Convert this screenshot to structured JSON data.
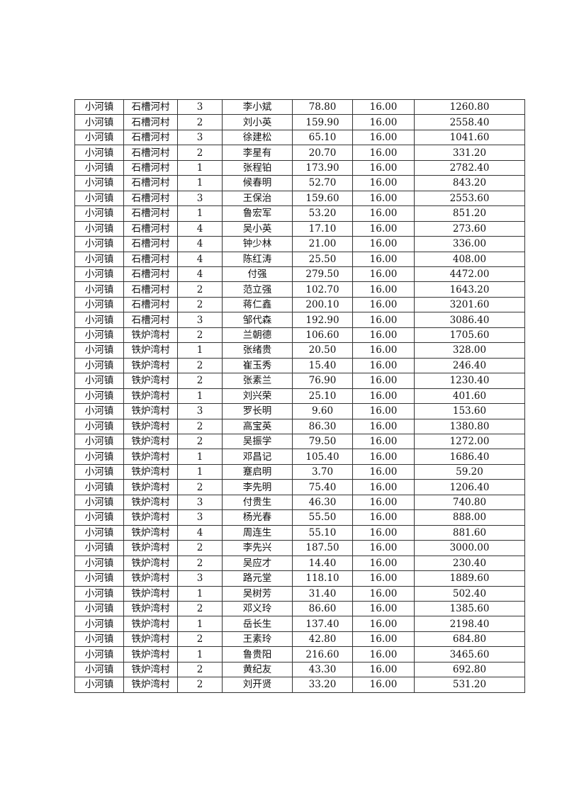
{
  "table": {
    "rows": [
      [
        "小河镇",
        "石槽河村",
        "3",
        "李小斌",
        "78.80",
        "16.00",
        "1260.80"
      ],
      [
        "小河镇",
        "石槽河村",
        "2",
        "刘小英",
        "159.90",
        "16.00",
        "2558.40"
      ],
      [
        "小河镇",
        "石槽河村",
        "3",
        "徐建松",
        "65.10",
        "16.00",
        "1041.60"
      ],
      [
        "小河镇",
        "石槽河村",
        "2",
        "李星有",
        "20.70",
        "16.00",
        "331.20"
      ],
      [
        "小河镇",
        "石槽河村",
        "1",
        "张程铂",
        "173.90",
        "16.00",
        "2782.40"
      ],
      [
        "小河镇",
        "石槽河村",
        "1",
        "候春明",
        "52.70",
        "16.00",
        "843.20"
      ],
      [
        "小河镇",
        "石槽河村",
        "3",
        "王保治",
        "159.60",
        "16.00",
        "2553.60"
      ],
      [
        "小河镇",
        "石槽河村",
        "1",
        "鲁宏军",
        "53.20",
        "16.00",
        "851.20"
      ],
      [
        "小河镇",
        "石槽河村",
        "4",
        "吴小英",
        "17.10",
        "16.00",
        "273.60"
      ],
      [
        "小河镇",
        "石槽河村",
        "4",
        "钟少林",
        "21.00",
        "16.00",
        "336.00"
      ],
      [
        "小河镇",
        "石槽河村",
        "4",
        "陈红涛",
        "25.50",
        "16.00",
        "408.00"
      ],
      [
        "小河镇",
        "石槽河村",
        "4",
        "付强",
        "279.50",
        "16.00",
        "4472.00"
      ],
      [
        "小河镇",
        "石槽河村",
        "2",
        "范立强",
        "102.70",
        "16.00",
        "1643.20"
      ],
      [
        "小河镇",
        "石槽河村",
        "2",
        "蒋仁鑫",
        "200.10",
        "16.00",
        "3201.60"
      ],
      [
        "小河镇",
        "石槽河村",
        "3",
        "邹代森",
        "192.90",
        "16.00",
        "3086.40"
      ],
      [
        "小河镇",
        "铁炉湾村",
        "2",
        "兰朝德",
        "106.60",
        "16.00",
        "1705.60"
      ],
      [
        "小河镇",
        "铁炉湾村",
        "1",
        "张绪贵",
        "20.50",
        "16.00",
        "328.00"
      ],
      [
        "小河镇",
        "铁炉湾村",
        "2",
        "崔玉秀",
        "15.40",
        "16.00",
        "246.40"
      ],
      [
        "小河镇",
        "铁炉湾村",
        "2",
        "张素兰",
        "76.90",
        "16.00",
        "1230.40"
      ],
      [
        "小河镇",
        "铁炉湾村",
        "1",
        "刘兴荣",
        "25.10",
        "16.00",
        "401.60"
      ],
      [
        "小河镇",
        "铁炉湾村",
        "3",
        "罗长明",
        "9.60",
        "16.00",
        "153.60"
      ],
      [
        "小河镇",
        "铁炉湾村",
        "2",
        "高宝英",
        "86.30",
        "16.00",
        "1380.80"
      ],
      [
        "小河镇",
        "铁炉湾村",
        "2",
        "吴振学",
        "79.50",
        "16.00",
        "1272.00"
      ],
      [
        "小河镇",
        "铁炉湾村",
        "1",
        "邓昌记",
        "105.40",
        "16.00",
        "1686.40"
      ],
      [
        "小河镇",
        "铁炉湾村",
        "1",
        "蹇启明",
        "3.70",
        "16.00",
        "59.20"
      ],
      [
        "小河镇",
        "铁炉湾村",
        "2",
        "李先明",
        "75.40",
        "16.00",
        "1206.40"
      ],
      [
        "小河镇",
        "铁炉湾村",
        "3",
        "付贵生",
        "46.30",
        "16.00",
        "740.80"
      ],
      [
        "小河镇",
        "铁炉湾村",
        "3",
        "杨光春",
        "55.50",
        "16.00",
        "888.00"
      ],
      [
        "小河镇",
        "铁炉湾村",
        "4",
        "周连生",
        "55.10",
        "16.00",
        "881.60"
      ],
      [
        "小河镇",
        "铁炉湾村",
        "2",
        "李先兴",
        "187.50",
        "16.00",
        "3000.00"
      ],
      [
        "小河镇",
        "铁炉湾村",
        "2",
        "吴应才",
        "14.40",
        "16.00",
        "230.40"
      ],
      [
        "小河镇",
        "铁炉湾村",
        "3",
        "路元堂",
        "118.10",
        "16.00",
        "1889.60"
      ],
      [
        "小河镇",
        "铁炉湾村",
        "1",
        "吴树芳",
        "31.40",
        "16.00",
        "502.40"
      ],
      [
        "小河镇",
        "铁炉湾村",
        "2",
        "邓义玲",
        "86.60",
        "16.00",
        "1385.60"
      ],
      [
        "小河镇",
        "铁炉湾村",
        "1",
        "岳长生",
        "137.40",
        "16.00",
        "2198.40"
      ],
      [
        "小河镇",
        "铁炉湾村",
        "2",
        "王素玲",
        "42.80",
        "16.00",
        "684.80"
      ],
      [
        "小河镇",
        "铁炉湾村",
        "1",
        "鲁贵阳",
        "216.60",
        "16.00",
        "3465.60"
      ],
      [
        "小河镇",
        "铁炉湾村",
        "2",
        "黄纪友",
        "43.30",
        "16.00",
        "692.80"
      ],
      [
        "小河镇",
        "铁炉湾村",
        "2",
        "刘开贤",
        "33.20",
        "16.00",
        "531.20"
      ]
    ]
  }
}
